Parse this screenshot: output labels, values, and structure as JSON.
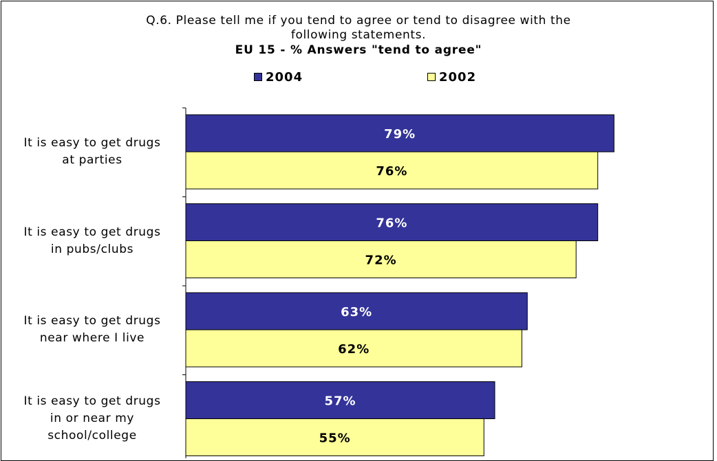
{
  "chart_data": {
    "type": "bar",
    "orientation": "horizontal",
    "title_lines": [
      "Q.6. Please tell me if you tend to agree or tend to disagree with the",
      "following statements."
    ],
    "subtitle": "EU 15 - % Answers \"tend to agree\"",
    "legend_position": "top",
    "categories": [
      [
        "It is easy to get drugs",
        "at parties"
      ],
      [
        "It is easy to get drugs",
        "in pubs/clubs"
      ],
      [
        "It is easy to get drugs",
        "near where I live"
      ],
      [
        "It is easy to get drugs",
        "in or near my",
        "school/college"
      ]
    ],
    "series": [
      {
        "name": "2004",
        "color": "#333399",
        "label_color": "#ffffff",
        "values": [
          79,
          76,
          63,
          57
        ],
        "labels": [
          "79%",
          "76%",
          "63%",
          "57%"
        ]
      },
      {
        "name": "2002",
        "color": "#ffff99",
        "label_color": "#000000",
        "values": [
          76,
          72,
          62,
          55
        ],
        "labels": [
          "76%",
          "72%",
          "62%",
          "55%"
        ]
      }
    ],
    "xlim": [
      0,
      100
    ],
    "grid": false
  }
}
